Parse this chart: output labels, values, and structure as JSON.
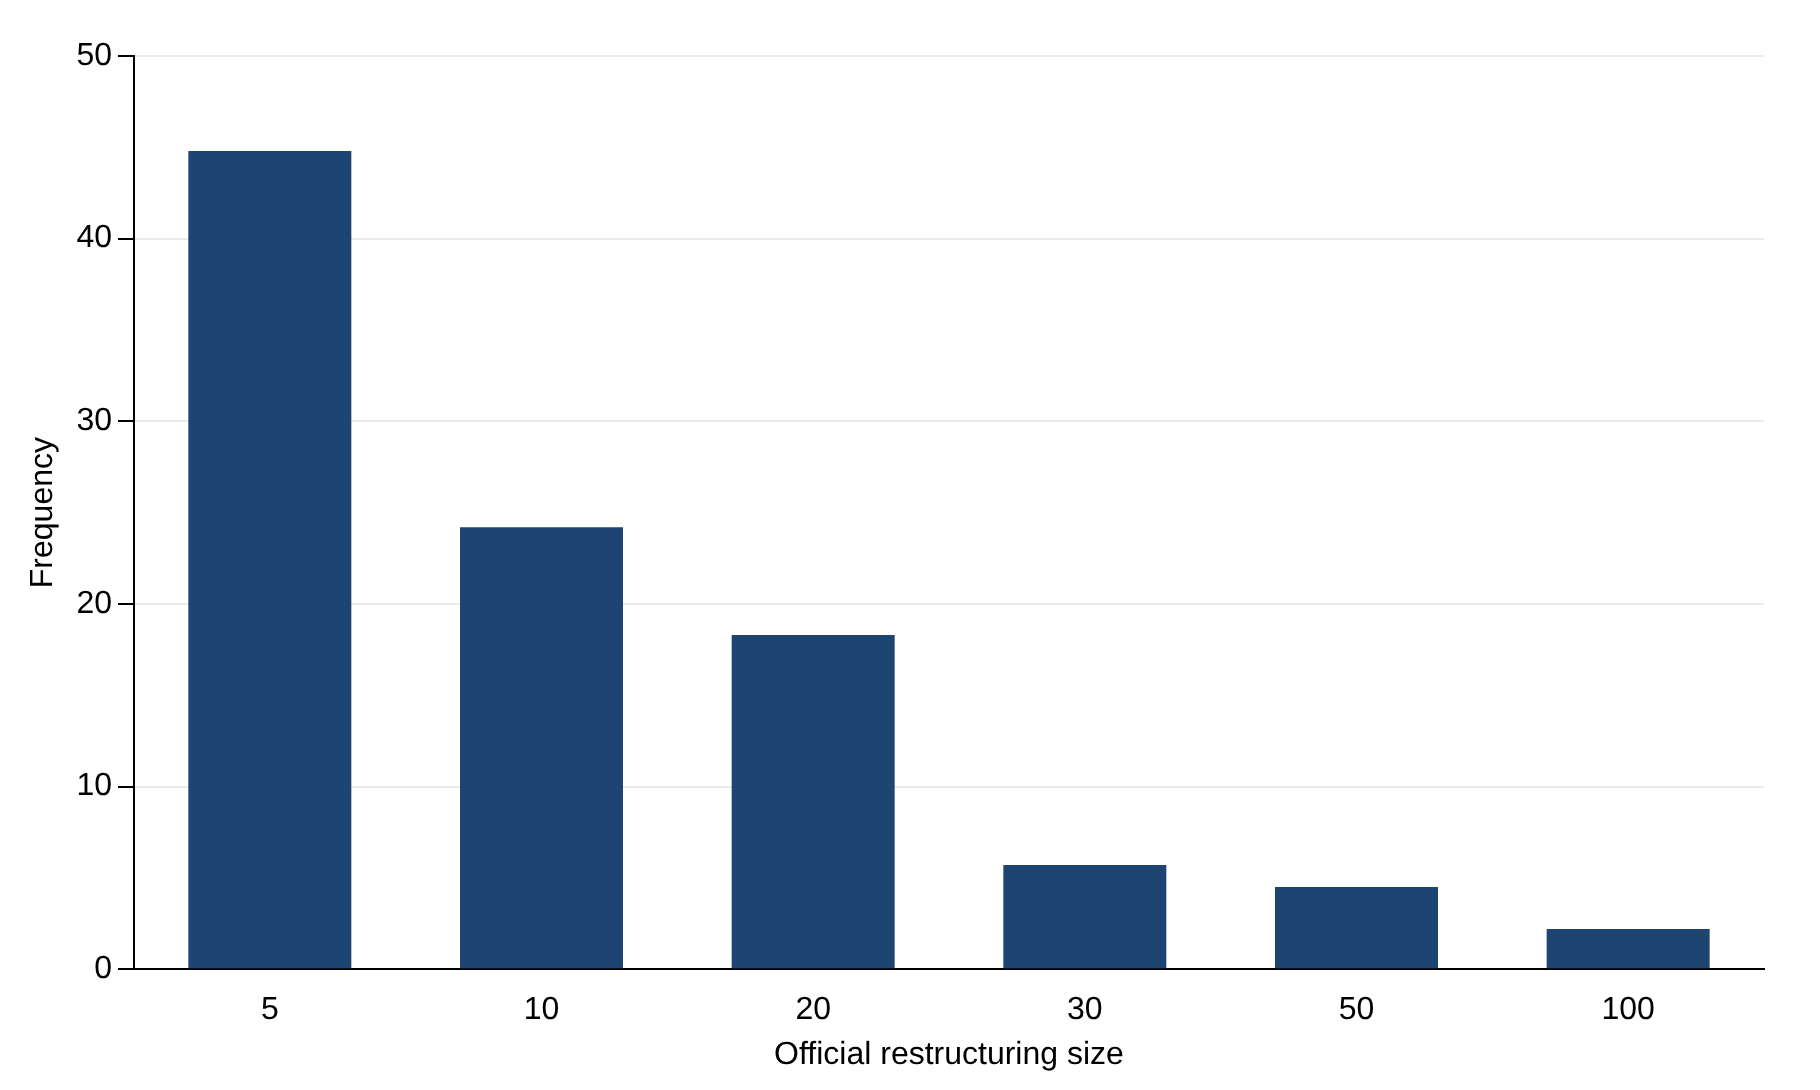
{
  "chart_data": {
    "type": "bar",
    "xlabel": "Official restructuring size",
    "ylabel": "Frequency",
    "categories": [
      "5",
      "10",
      "20",
      "30",
      "50",
      "100"
    ],
    "values": [
      44.8,
      24.2,
      18.3,
      5.7,
      4.5,
      2.2
    ],
    "color": "#1e4571",
    "ylim": [
      0,
      50
    ],
    "yticks": [
      0,
      10,
      20,
      30,
      40,
      50
    ],
    "grid": "y"
  }
}
